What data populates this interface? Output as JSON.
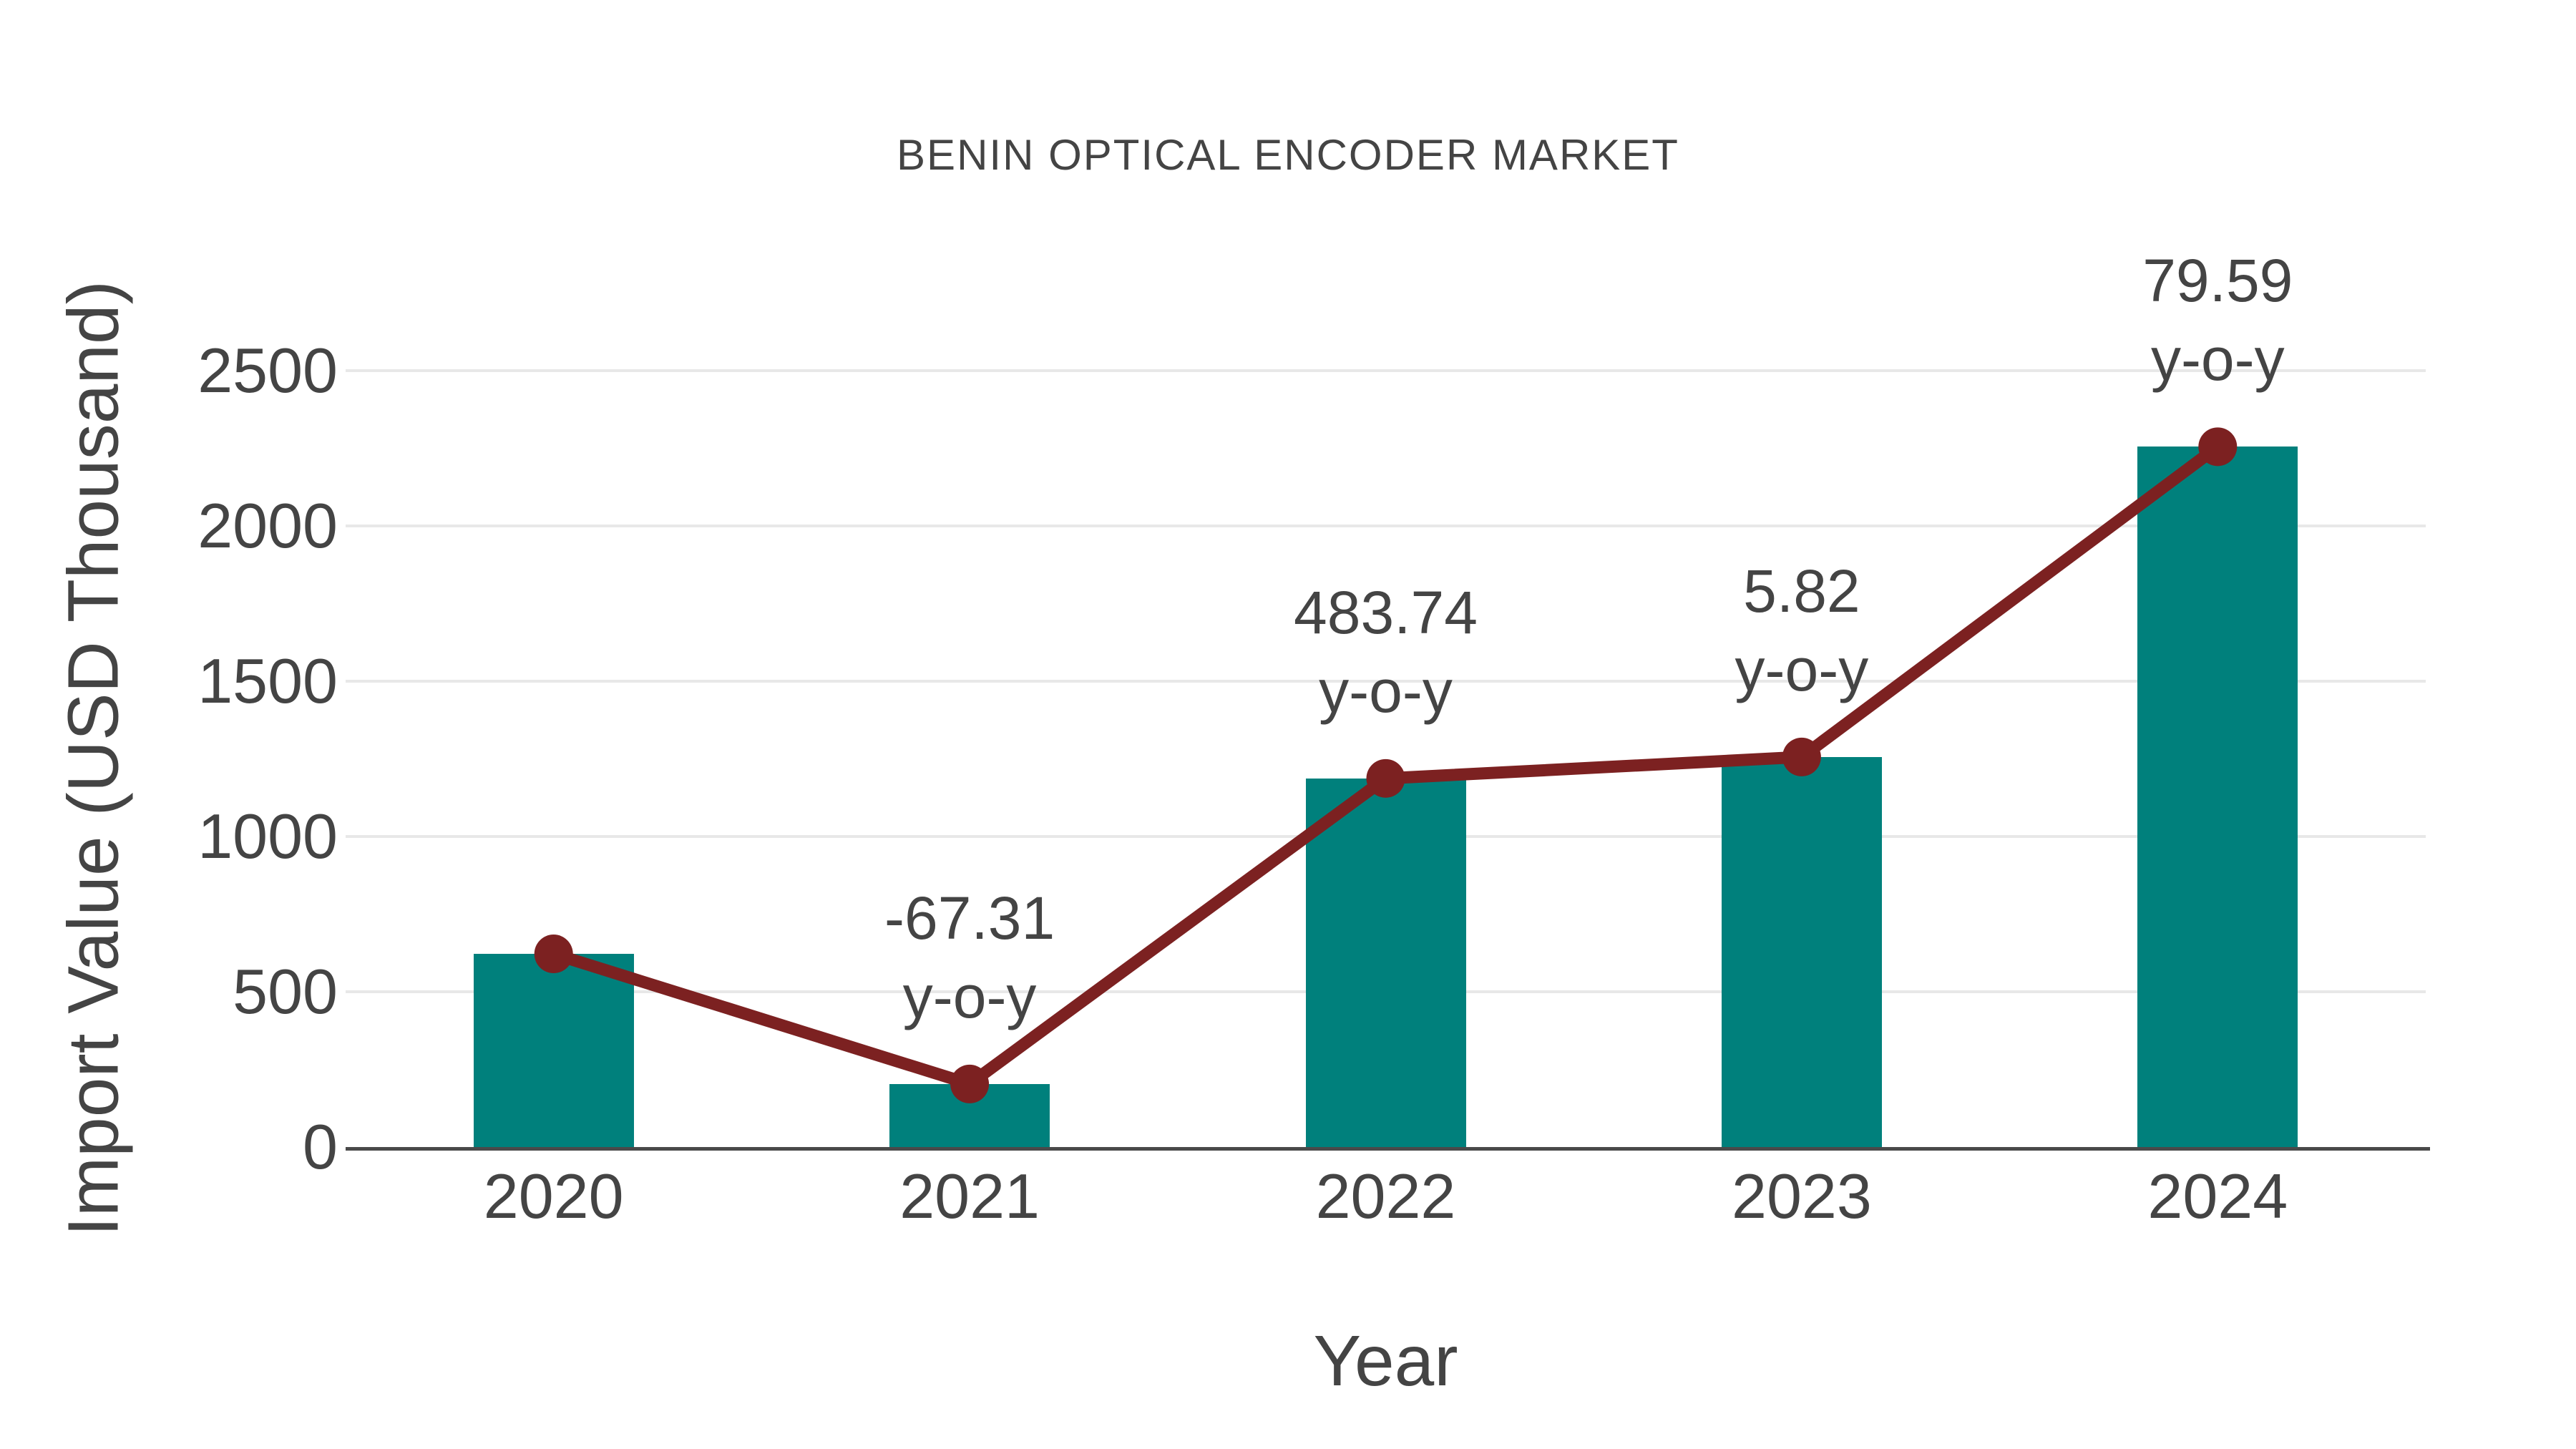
{
  "chart_data": {
    "type": "bar",
    "title": "BENIN OPTICAL ENCODER MARKET",
    "xlabel": "Year",
    "ylabel": "Import Value (USD Thousand)",
    "categories": [
      "2020",
      "2021",
      "2022",
      "2023",
      "2024"
    ],
    "series": [
      {
        "name": "Import Value",
        "type": "bar",
        "color": "#00807C",
        "values": [
          622,
          203,
          1187,
          1256,
          2255
        ]
      },
      {
        "name": "Import Value trend markers",
        "type": "line",
        "color": "#7C2121",
        "values": [
          622,
          203,
          1187,
          1256,
          2255
        ]
      }
    ],
    "yoy_labels": [
      {
        "category": "2021",
        "value": "-67.31",
        "suffix": "y-o-y"
      },
      {
        "category": "2022",
        "value": "483.74",
        "suffix": "y-o-y"
      },
      {
        "category": "2023",
        "value": "5.82",
        "suffix": "y-o-y"
      },
      {
        "category": "2024",
        "value": "79.59",
        "suffix": "y-o-y"
      }
    ],
    "yticks": [
      0,
      500,
      1000,
      1500,
      2000,
      2500
    ],
    "ylim": [
      0,
      2700
    ],
    "grid": "horizontal",
    "legend": "none",
    "colors": {
      "bar": "#00807C",
      "line": "#7C2121",
      "text": "#444444",
      "grid": "#E8E8E8",
      "axis": "#4A4A4A",
      "background": "#FFFFFF"
    }
  }
}
